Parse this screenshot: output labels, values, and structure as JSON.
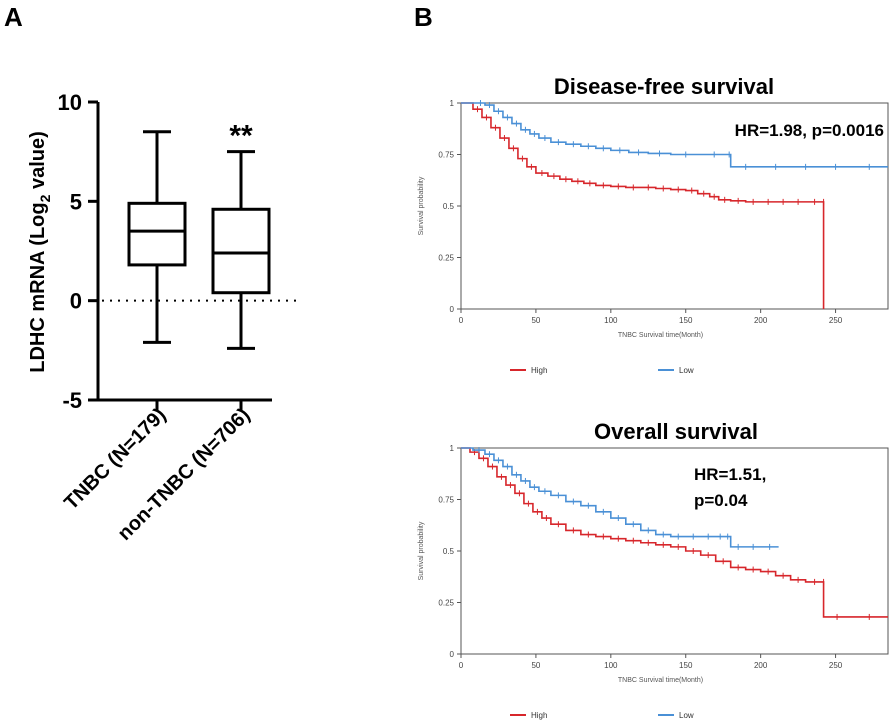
{
  "panels": {
    "a_label": "A",
    "b_label": "B"
  },
  "chart_data": [
    {
      "type": "box",
      "id": "ldhc-boxplot",
      "ylabel_main": "LDHC mRNA (Log",
      "ylabel_sub": "2",
      "ylabel_tail": " value)",
      "ylim": [
        -5,
        10
      ],
      "yticks": [
        10,
        5,
        0,
        -5
      ],
      "reference_line": 0,
      "categories": [
        "TNBC (N=179)",
        "non-TNBC (N=706)"
      ],
      "boxes": [
        {
          "name": "TNBC (N=179)",
          "min": -2.1,
          "q1": 1.8,
          "median": 3.5,
          "q3": 4.9,
          "max": 8.5
        },
        {
          "name": "non-TNBC (N=706)",
          "min": -2.4,
          "q1": 0.4,
          "median": 2.4,
          "q3": 4.6,
          "max": 7.5
        }
      ],
      "significance": "**"
    },
    {
      "type": "line",
      "id": "dfs-km",
      "title": "Disease-free survival",
      "annotation": "HR=1.98, p=0.0016",
      "xlabel": "TNBC Survival time(Month)",
      "ylabel": "Survival probability",
      "xlim": [
        0,
        285
      ],
      "ylim": [
        0,
        1
      ],
      "xticks": [
        "0",
        "50",
        "100",
        "150",
        "200",
        "250"
      ],
      "yticks": [
        "0",
        "0.25",
        "0.5",
        "0.75",
        "1"
      ],
      "series": [
        {
          "name": "High",
          "color": "#d7262b",
          "x": [
            0,
            8,
            14,
            20,
            26,
            32,
            38,
            44,
            50,
            58,
            66,
            74,
            82,
            90,
            100,
            110,
            120,
            130,
            140,
            150,
            158,
            166,
            172,
            180,
            190,
            200,
            210,
            220,
            230,
            242,
            242
          ],
          "y": [
            1,
            0.97,
            0.93,
            0.88,
            0.83,
            0.78,
            0.73,
            0.69,
            0.66,
            0.645,
            0.63,
            0.62,
            0.61,
            0.6,
            0.595,
            0.59,
            0.59,
            0.585,
            0.58,
            0.575,
            0.56,
            0.545,
            0.53,
            0.525,
            0.52,
            0.52,
            0.52,
            0.52,
            0.52,
            0.52,
            0
          ]
        },
        {
          "name": "Low",
          "color": "#4a90d6",
          "x": [
            0,
            10,
            16,
            22,
            28,
            34,
            40,
            46,
            52,
            60,
            70,
            80,
            90,
            100,
            112,
            125,
            140,
            160,
            178,
            180,
            200,
            220,
            240,
            260,
            285
          ],
          "y": [
            1,
            1,
            0.99,
            0.96,
            0.93,
            0.9,
            0.87,
            0.85,
            0.83,
            0.81,
            0.8,
            0.79,
            0.78,
            0.77,
            0.76,
            0.755,
            0.75,
            0.75,
            0.75,
            0.69,
            0.69,
            0.69,
            0.69,
            0.69,
            0.69
          ]
        }
      ],
      "legend": [
        "High",
        "Low"
      ]
    },
    {
      "type": "line",
      "id": "os-km",
      "title": "Overall survival",
      "annotation_lines": [
        "HR=1.51,",
        "p=0.04"
      ],
      "xlabel": "TNBC Survival time(Month)",
      "ylabel": "Survival probability",
      "xlim": [
        0,
        285
      ],
      "ylim": [
        0,
        1
      ],
      "xticks": [
        "0",
        "50",
        "100",
        "150",
        "200",
        "250"
      ],
      "yticks": [
        "0",
        "0.25",
        "0.5",
        "0.75",
        "1"
      ],
      "series": [
        {
          "name": "High",
          "color": "#d7262b",
          "x": [
            0,
            6,
            12,
            18,
            24,
            30,
            36,
            42,
            48,
            54,
            60,
            70,
            80,
            90,
            100,
            110,
            120,
            130,
            140,
            150,
            160,
            170,
            180,
            190,
            200,
            210,
            220,
            230,
            242,
            242,
            260,
            285
          ],
          "y": [
            1,
            0.98,
            0.95,
            0.91,
            0.86,
            0.82,
            0.78,
            0.73,
            0.69,
            0.66,
            0.63,
            0.6,
            0.58,
            0.57,
            0.56,
            0.55,
            0.54,
            0.53,
            0.52,
            0.5,
            0.48,
            0.45,
            0.42,
            0.41,
            0.4,
            0.38,
            0.36,
            0.35,
            0.35,
            0.18,
            0.18,
            0.18
          ]
        },
        {
          "name": "Low",
          "color": "#4a90d6",
          "x": [
            0,
            8,
            16,
            22,
            28,
            34,
            40,
            46,
            52,
            60,
            70,
            80,
            90,
            100,
            110,
            120,
            130,
            140,
            150,
            160,
            170,
            176,
            180,
            190,
            200,
            212
          ],
          "y": [
            1,
            0.99,
            0.97,
            0.94,
            0.91,
            0.87,
            0.84,
            0.81,
            0.79,
            0.77,
            0.74,
            0.72,
            0.69,
            0.66,
            0.63,
            0.6,
            0.58,
            0.57,
            0.57,
            0.57,
            0.57,
            0.57,
            0.52,
            0.52,
            0.52,
            0.52
          ]
        }
      ],
      "legend": [
        "High",
        "Low"
      ]
    }
  ]
}
